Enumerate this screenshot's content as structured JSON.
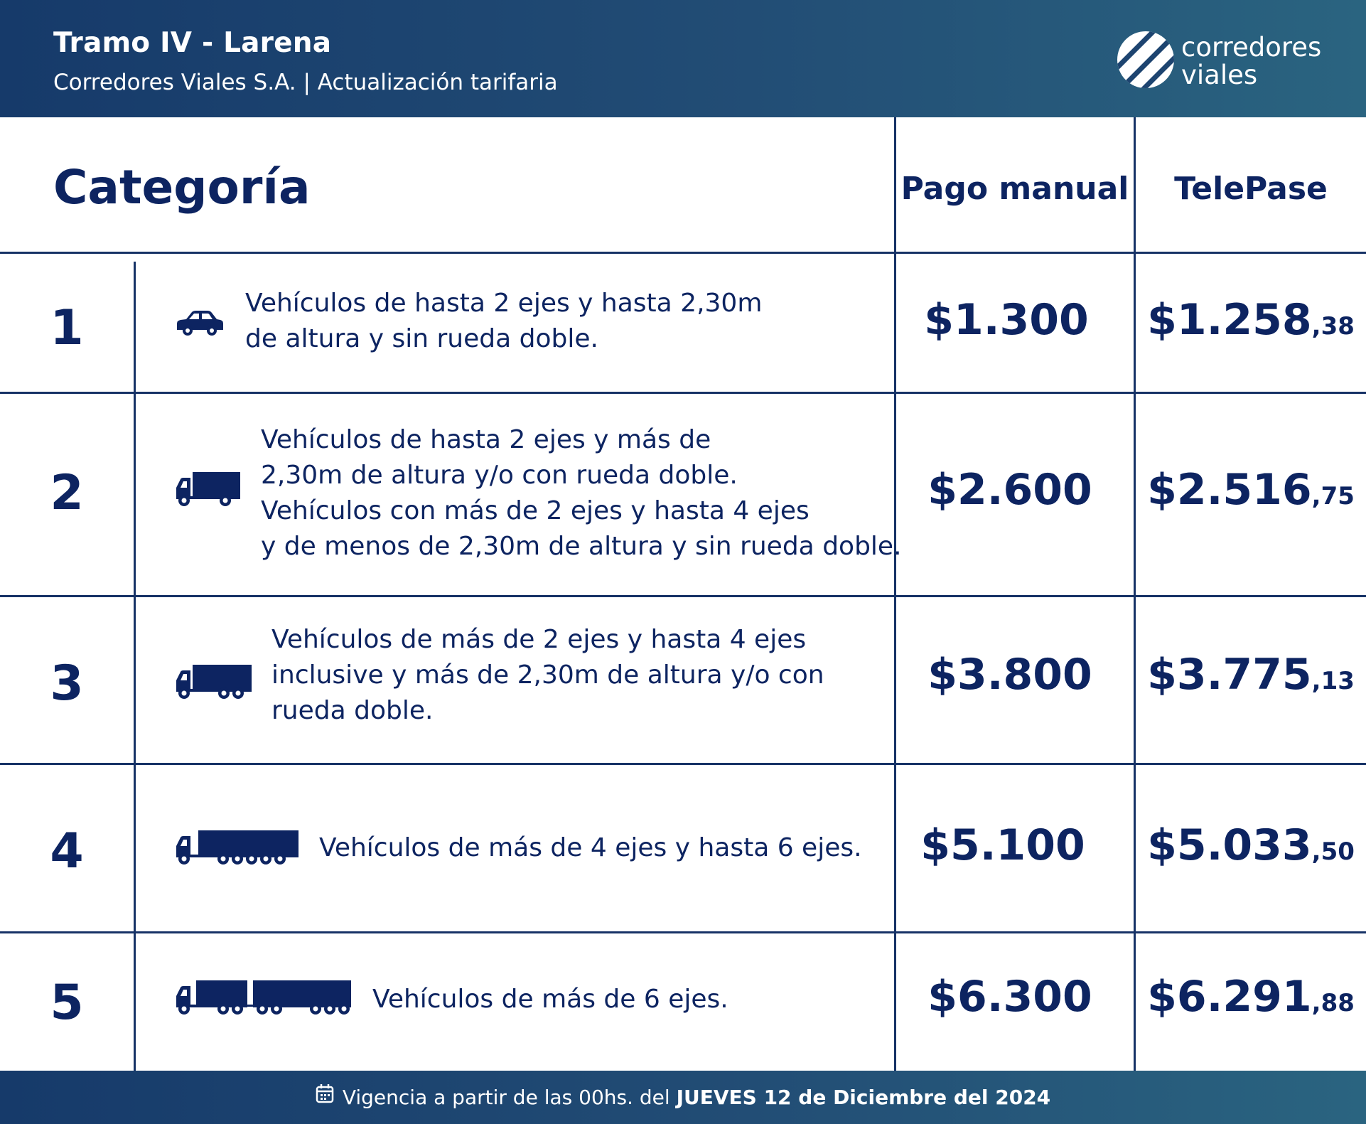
{
  "header": {
    "title": "Tramo IV - Larena",
    "subtitle": "Corredores Viales S.A. | Actualización tarifaria",
    "logo_line1": "corredores",
    "logo_line2": "viales"
  },
  "table": {
    "headers": {
      "category": "Categoría",
      "manual": "Pago manual",
      "telepase": "TelePase"
    },
    "rows": [
      {
        "num": "1",
        "icon": "car-icon",
        "desc_lines": [
          "Vehículos de hasta 2 ejes y hasta 2,30m",
          "de altura y sin rueda doble."
        ],
        "manual": "$1.300",
        "telepase_main": "$1.258",
        "telepase_cents": ",38"
      },
      {
        "num": "2",
        "icon": "small-truck-icon",
        "desc_lines": [
          "Vehículos de hasta 2 ejes y más de",
          "2,30m de altura y/o con rueda doble.",
          "Vehículos con más de 2 ejes y hasta 4 ejes",
          "y de menos de 2,30m de altura y sin rueda doble."
        ],
        "manual": "$2.600",
        "telepase_main": "$2.516",
        "telepase_cents": ",75"
      },
      {
        "num": "3",
        "icon": "truck-icon",
        "desc_lines": [
          "Vehículos de más de 2 ejes y hasta 4 ejes",
          "inclusive y más de 2,30m de altura y/o con",
          "rueda doble."
        ],
        "manual": "$3.800",
        "telepase_main": "$3.775",
        "telepase_cents": ",13"
      },
      {
        "num": "4",
        "icon": "semi-truck-icon",
        "desc_lines": [
          "Vehículos de más de 4 ejes y hasta 6 ejes."
        ],
        "manual": "$5.100",
        "telepase_main": "$5.033",
        "telepase_cents": ",50"
      },
      {
        "num": "5",
        "icon": "truck-trailer-icon",
        "desc_lines": [
          "Vehículos de más de 6 ejes."
        ],
        "manual": "$6.300",
        "telepase_main": "$6.291",
        "telepase_cents": ",88"
      }
    ]
  },
  "footer": {
    "text_prefix": "Vigencia a partir de las 00hs. del ",
    "text_bold": "JUEVES 12 de Diciembre del 2024",
    "icon": "calendar-icon"
  },
  "colors": {
    "navy": "#0d2461",
    "header_start": "#163a6a",
    "header_end": "#2a6480"
  }
}
